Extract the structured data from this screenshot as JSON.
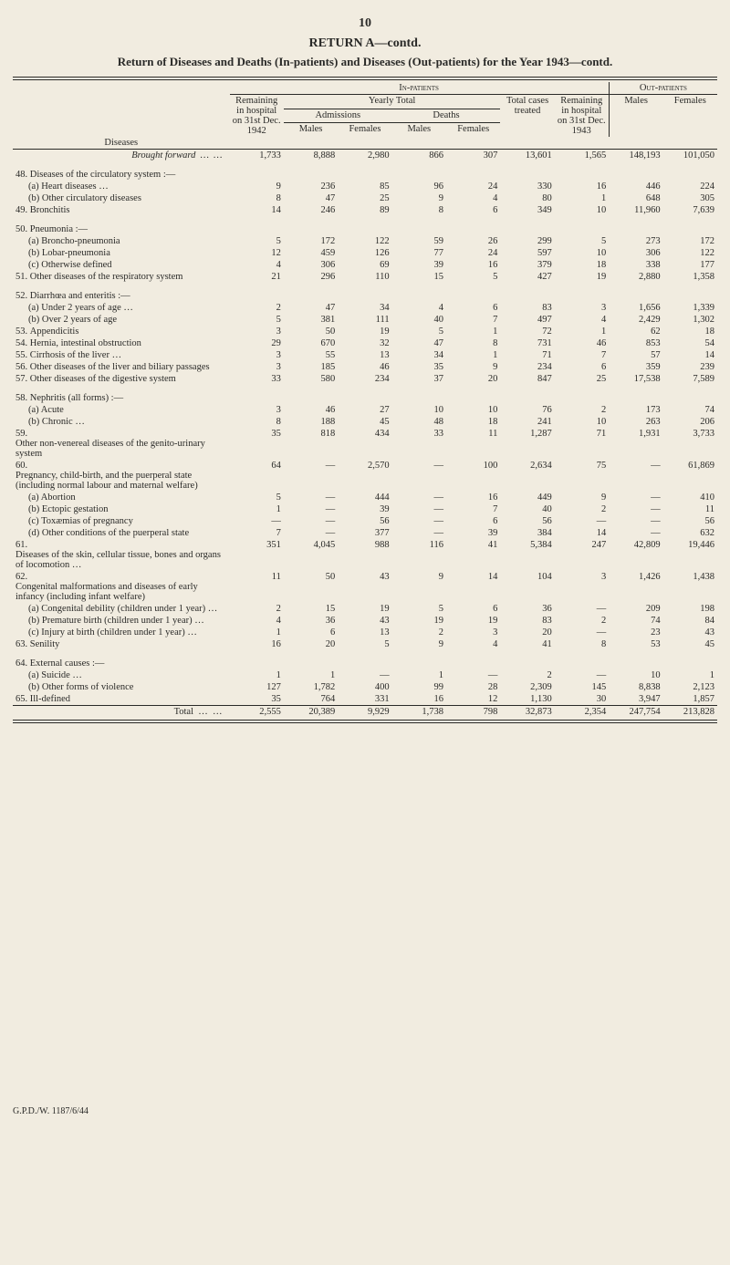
{
  "page_number": "10",
  "return_title": "RETURN A—contd.",
  "sub_title": "Return of Diseases and Deaths (In-patients) and Diseases (Out-patients) for the Year 1943—contd.",
  "footer": "G.P.D./W. 1187/6/44",
  "table": {
    "headers": {
      "diseases": "Diseases",
      "in_patients": "In-patients",
      "out_patients": "Out-patients",
      "remaining_in_hospital_31st_dec_1942": "Remaining in hospital on 31st Dec. 1942",
      "yearly_total": "Yearly Total",
      "admissions": "Admissions",
      "deaths": "Deaths",
      "males": "Males",
      "females": "Females",
      "total_cases_treated": "Total cases treated",
      "remaining_in_hospital_31st_dec_1943": "Remaining in hospital on 31st Dec. 1943",
      "out_males": "Males",
      "out_females": "Females"
    },
    "brought_forward_label": "Brought forward",
    "brought_forward": [
      "1,733",
      "8,888",
      "2,980",
      "866",
      "307",
      "13,601",
      "1,565",
      "148,193",
      "101,050"
    ],
    "total_label": "Total",
    "total": [
      "2,555",
      "20,389",
      "9,929",
      "1,738",
      "798",
      "32,873",
      "2,354",
      "247,754",
      "213,828"
    ],
    "rows": [
      {
        "n": "48.",
        "label": "Diseases of the circulatory system :—",
        "vals": [
          "",
          "",
          "",
          "",
          "",
          "",
          "",
          "",
          ""
        ]
      },
      {
        "n": "",
        "indent": 1,
        "label": "(a) Heart diseases …",
        "vals": [
          "9",
          "236",
          "85",
          "96",
          "24",
          "330",
          "16",
          "446",
          "224"
        ]
      },
      {
        "n": "",
        "indent": 1,
        "label": "(b) Other circulatory diseases",
        "vals": [
          "8",
          "47",
          "25",
          "9",
          "4",
          "80",
          "1",
          "648",
          "305"
        ]
      },
      {
        "n": "49.",
        "label": "Bronchitis",
        "vals": [
          "14",
          "246",
          "89",
          "8",
          "6",
          "349",
          "10",
          "11,960",
          "7,639"
        ]
      },
      {
        "spacer": true
      },
      {
        "n": "50.",
        "label": "Pneumonia :—",
        "vals": [
          "",
          "",
          "",
          "",
          "",
          "",
          "",
          "",
          ""
        ]
      },
      {
        "n": "",
        "indent": 1,
        "label": "(a) Broncho-pneumonia",
        "vals": [
          "5",
          "172",
          "122",
          "59",
          "26",
          "299",
          "5",
          "273",
          "172"
        ]
      },
      {
        "n": "",
        "indent": 1,
        "label": "(b) Lobar-pneumonia",
        "vals": [
          "12",
          "459",
          "126",
          "77",
          "24",
          "597",
          "10",
          "306",
          "122"
        ]
      },
      {
        "n": "",
        "indent": 1,
        "label": "(c) Otherwise defined",
        "vals": [
          "4",
          "306",
          "69",
          "39",
          "16",
          "379",
          "18",
          "338",
          "177"
        ]
      },
      {
        "n": "51.",
        "label": "Other diseases of the respiratory system",
        "vals": [
          "21",
          "296",
          "110",
          "15",
          "5",
          "427",
          "19",
          "2,880",
          "1,358"
        ]
      },
      {
        "spacer": true
      },
      {
        "n": "52.",
        "label": "Diarrhœa and enteritis :—",
        "vals": [
          "",
          "",
          "",
          "",
          "",
          "",
          "",
          "",
          ""
        ]
      },
      {
        "n": "",
        "indent": 1,
        "label": "(a) Under 2 years of age …",
        "vals": [
          "2",
          "47",
          "34",
          "4",
          "6",
          "83",
          "3",
          "1,656",
          "1,339"
        ]
      },
      {
        "n": "",
        "indent": 1,
        "label": "(b) Over 2 years of age",
        "vals": [
          "5",
          "381",
          "111",
          "40",
          "7",
          "497",
          "4",
          "2,429",
          "1,302"
        ]
      },
      {
        "n": "53.",
        "label": "Appendicitis",
        "vals": [
          "3",
          "50",
          "19",
          "5",
          "1",
          "72",
          "1",
          "62",
          "18"
        ]
      },
      {
        "n": "54.",
        "label": "Hernia, intestinal obstruction",
        "vals": [
          "29",
          "670",
          "32",
          "47",
          "8",
          "731",
          "46",
          "853",
          "54"
        ]
      },
      {
        "n": "55.",
        "label": "Cirrhosis of the liver …",
        "vals": [
          "3",
          "55",
          "13",
          "34",
          "1",
          "71",
          "7",
          "57",
          "14"
        ]
      },
      {
        "n": "56.",
        "label": "Other diseases of the liver and biliary passages",
        "vals": [
          "3",
          "185",
          "46",
          "35",
          "9",
          "234",
          "6",
          "359",
          "239"
        ]
      },
      {
        "n": "57.",
        "label": "Other diseases of the digestive system",
        "vals": [
          "33",
          "580",
          "234",
          "37",
          "20",
          "847",
          "25",
          "17,538",
          "7,589"
        ]
      },
      {
        "spacer": true
      },
      {
        "n": "58.",
        "label": "Nephritis (all forms) :—",
        "vals": [
          "",
          "",
          "",
          "",
          "",
          "",
          "",
          "",
          ""
        ]
      },
      {
        "n": "",
        "indent": 1,
        "label": "(a) Acute",
        "vals": [
          "3",
          "46",
          "27",
          "10",
          "10",
          "76",
          "2",
          "173",
          "74"
        ]
      },
      {
        "n": "",
        "indent": 1,
        "label": "(b) Chronic …",
        "vals": [
          "8",
          "188",
          "45",
          "48",
          "18",
          "241",
          "10",
          "263",
          "206"
        ]
      },
      {
        "n": "59.",
        "label": "Other non-venereal diseases of the genito-urinary system",
        "vals": [
          "35",
          "818",
          "434",
          "33",
          "11",
          "1,287",
          "71",
          "1,931",
          "3,733"
        ]
      },
      {
        "n": "60.",
        "label": "Pregnancy, child-birth, and the puerperal state (including normal labour and maternal welfare)",
        "vals": [
          "64",
          "—",
          "2,570",
          "—",
          "100",
          "2,634",
          "75",
          "—",
          "61,869"
        ]
      },
      {
        "n": "",
        "indent": 1,
        "label": "(a) Abortion",
        "vals": [
          "5",
          "—",
          "444",
          "—",
          "16",
          "449",
          "9",
          "—",
          "410"
        ]
      },
      {
        "n": "",
        "indent": 1,
        "label": "(b) Ectopic gestation",
        "vals": [
          "1",
          "—",
          "39",
          "—",
          "7",
          "40",
          "2",
          "—",
          "11"
        ]
      },
      {
        "n": "",
        "indent": 1,
        "label": "(c) Toxæmias of pregnancy",
        "vals": [
          "—",
          "—",
          "56",
          "—",
          "6",
          "56",
          "—",
          "—",
          "56"
        ]
      },
      {
        "n": "",
        "indent": 1,
        "label": "(d) Other conditions of the puerperal state",
        "vals": [
          "7",
          "—",
          "377",
          "—",
          "39",
          "384",
          "14",
          "—",
          "632"
        ]
      },
      {
        "n": "61.",
        "label": "Diseases of the skin, cellular tissue, bones and organs of locomotion …",
        "vals": [
          "351",
          "4,045",
          "988",
          "116",
          "41",
          "5,384",
          "247",
          "42,809",
          "19,446"
        ]
      },
      {
        "n": "62.",
        "label": "Congenital malformations and diseases of early infancy (including infant welfare)",
        "vals": [
          "11",
          "50",
          "43",
          "9",
          "14",
          "104",
          "3",
          "1,426",
          "1,438"
        ]
      },
      {
        "n": "",
        "indent": 1,
        "label": "(a) Congenital debility (children under 1 year) …",
        "vals": [
          "2",
          "15",
          "19",
          "5",
          "6",
          "36",
          "—",
          "209",
          "198"
        ]
      },
      {
        "n": "",
        "indent": 1,
        "label": "(b) Premature birth (children under 1 year) …",
        "vals": [
          "4",
          "36",
          "43",
          "19",
          "19",
          "83",
          "2",
          "74",
          "84"
        ]
      },
      {
        "n": "",
        "indent": 1,
        "label": "(c) Injury at birth (children under 1 year) …",
        "vals": [
          "1",
          "6",
          "13",
          "2",
          "3",
          "20",
          "—",
          "23",
          "43"
        ]
      },
      {
        "n": "63.",
        "label": "Senility",
        "vals": [
          "16",
          "20",
          "5",
          "9",
          "4",
          "41",
          "8",
          "53",
          "45"
        ]
      },
      {
        "spacer": true
      },
      {
        "n": "64.",
        "label": "External causes :—",
        "vals": [
          "",
          "",
          "",
          "",
          "",
          "",
          "",
          "",
          ""
        ]
      },
      {
        "n": "",
        "indent": 1,
        "label": "(a) Suicide …",
        "vals": [
          "1",
          "1",
          "—",
          "1",
          "—",
          "2",
          "—",
          "10",
          "1"
        ]
      },
      {
        "n": "",
        "indent": 1,
        "label": "(b) Other forms of violence",
        "vals": [
          "127",
          "1,782",
          "400",
          "99",
          "28",
          "2,309",
          "145",
          "8,838",
          "2,123"
        ]
      },
      {
        "n": "65.",
        "label": "Ill-defined",
        "vals": [
          "35",
          "764",
          "331",
          "16",
          "12",
          "1,130",
          "30",
          "3,947",
          "1,857"
        ]
      }
    ]
  }
}
